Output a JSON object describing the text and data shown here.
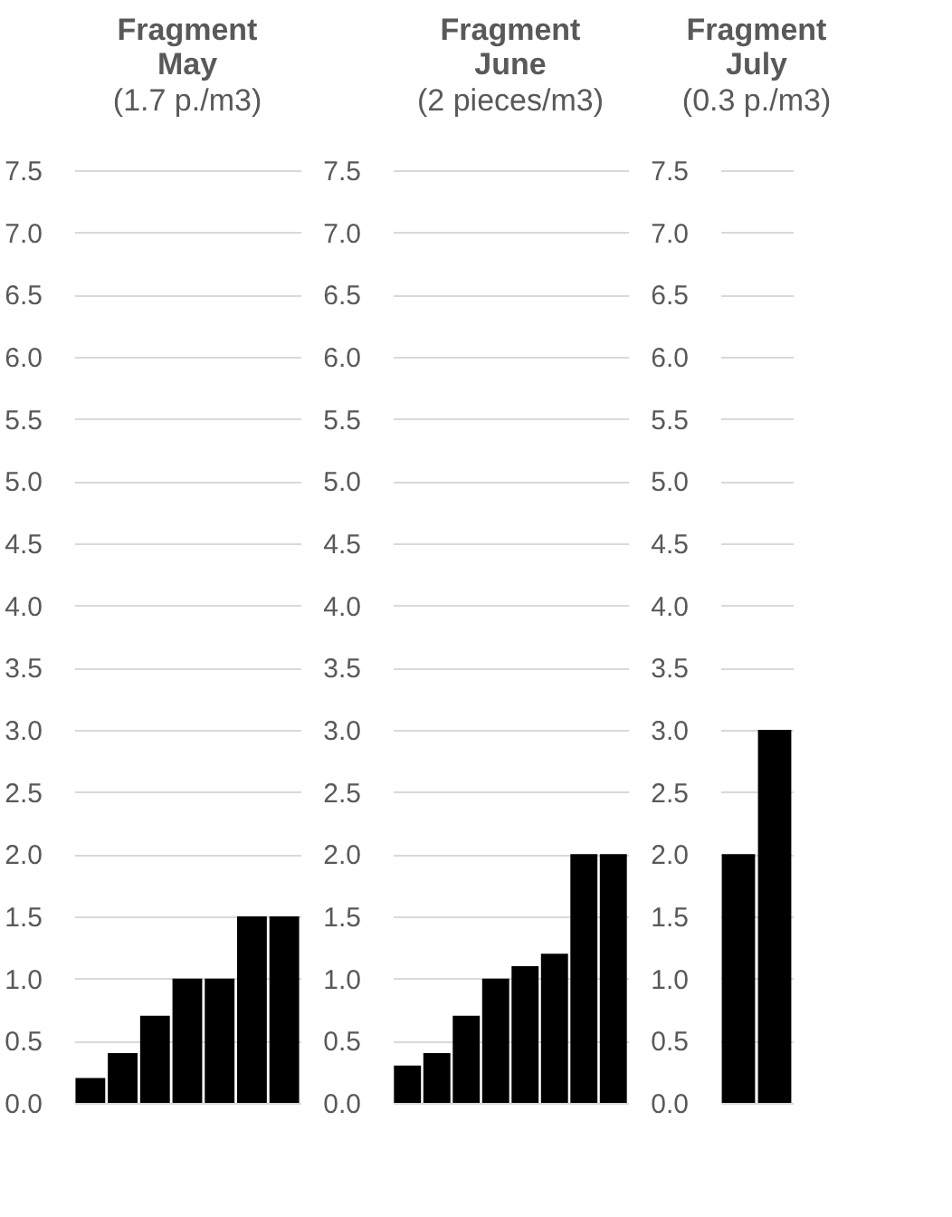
{
  "chart_data": [
    {
      "type": "bar",
      "title": "Fragment May",
      "subtitle": "(1.7 p./m3)",
      "categories": [
        null,
        null,
        null,
        null,
        null,
        null,
        null
      ],
      "values": [
        0.2,
        0.4,
        0.7,
        1.0,
        1.0,
        1.5,
        1.5
      ],
      "color": "#000000",
      "ylim": [
        0,
        7.5
      ],
      "yticks": [
        {
          "value": 0,
          "label": "0.0"
        },
        0.5,
        {
          "value": 1,
          "label": "1.0"
        },
        1.5,
        {
          "value": 2,
          "label": "2.0"
        },
        2.5,
        {
          "value": 3,
          "label": "3.0"
        },
        3.5,
        {
          "value": 4,
          "label": "4.0"
        },
        4.5,
        {
          "value": 5,
          "label": "5.0"
        },
        5.5,
        {
          "value": 6,
          "label": "6.0"
        },
        6.5,
        {
          "value": 7,
          "label": "7.0"
        },
        7.5
      ],
      "grid": "y",
      "tick_labels": "y"
    },
    {
      "type": "bar",
      "title": "Fragment June",
      "subtitle": "(2 pieces/m3)",
      "categories": [
        null,
        null,
        null,
        null,
        null,
        null,
        null,
        null
      ],
      "values": [
        0.3,
        0.4,
        0.7,
        1.0,
        1.1,
        1.2,
        2.0,
        2.0
      ],
      "color": "#000000",
      "ylim": [
        0,
        7.5
      ],
      "yticks": [
        {
          "value": 0,
          "label": "0.0"
        },
        0.5,
        {
          "value": 1,
          "label": "1.0"
        },
        1.5,
        {
          "value": 2,
          "label": "2.0"
        },
        2.5,
        {
          "value": 3,
          "label": "3.0"
        },
        3.5,
        {
          "value": 4,
          "label": "4.0"
        },
        4.5,
        {
          "value": 5,
          "label": "5.0"
        },
        5.5,
        {
          "value": 6,
          "label": "6.0"
        },
        6.5,
        {
          "value": 7,
          "label": "7.0"
        },
        7.5
      ],
      "grid": "y",
      "tick_labels": "y"
    },
    {
      "type": "bar",
      "title": "Fragment July",
      "subtitle": "(0.3 p./m3)",
      "categories": [
        null,
        null
      ],
      "values": [
        2.0,
        3.0
      ],
      "color": "#000000",
      "ylim": [
        0,
        7.5
      ],
      "yticks": [
        {
          "value": 0,
          "label": "0.0"
        },
        0.5,
        {
          "value": 1,
          "label": "1.0"
        },
        1.5,
        {
          "value": 2,
          "label": "2.0"
        },
        2.5,
        {
          "value": 3,
          "label": "3.0"
        },
        3.5,
        {
          "value": 4,
          "label": "4.0"
        },
        4.5,
        {
          "value": 5,
          "label": "5.0"
        },
        5.5,
        {
          "value": 6,
          "label": "6.0"
        },
        6.5,
        {
          "value": 7,
          "label": "7.0"
        },
        7.5
      ],
      "grid": "y",
      "tick_labels": "y"
    }
  ]
}
